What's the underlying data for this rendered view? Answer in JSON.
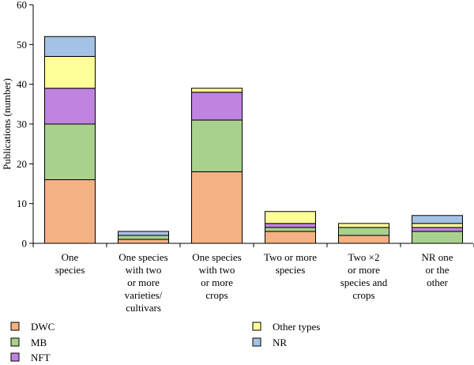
{
  "chart_data": {
    "type": "bar",
    "stacked": true,
    "title": "",
    "xlabel": "",
    "ylabel": "Publications (number)",
    "ylim": [
      0,
      60
    ],
    "yticks": [
      0,
      10,
      20,
      30,
      40,
      50,
      60
    ],
    "grid": false,
    "legend_position": "bottom",
    "categories": [
      [
        "One",
        "species"
      ],
      [
        "One species",
        "with two",
        "or more",
        "varieties/",
        "cultivars"
      ],
      [
        "One species",
        "with two",
        "or more",
        "crops"
      ],
      [
        "Two or more",
        "species"
      ],
      [
        "Two ×2",
        "or more",
        "species and",
        "crops"
      ],
      [
        "NR one",
        "or the",
        "other"
      ]
    ],
    "series": [
      {
        "name": "DWC",
        "color": "#f4b183",
        "values": [
          16,
          1,
          18,
          3,
          2,
          0
        ]
      },
      {
        "name": "MB",
        "color": "#a9d18e",
        "values": [
          14,
          1,
          13,
          1,
          2,
          3
        ]
      },
      {
        "name": "NFT",
        "color": "#c083e0",
        "values": [
          9,
          0,
          7,
          1,
          0,
          1
        ]
      },
      {
        "name": "Other types",
        "color": "#ffff99",
        "values": [
          8,
          0,
          1,
          3,
          1,
          1
        ]
      },
      {
        "name": "NR",
        "color": "#a4c2e6",
        "values": [
          5,
          1,
          0,
          0,
          0,
          2
        ]
      }
    ]
  }
}
